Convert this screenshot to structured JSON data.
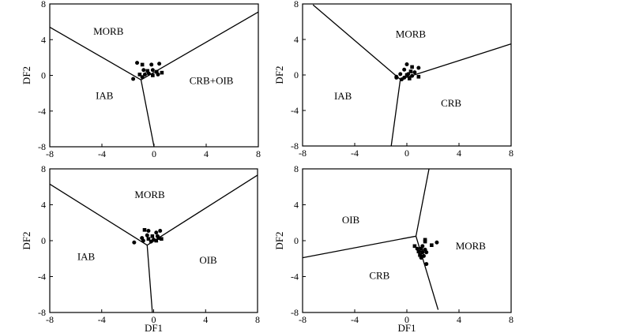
{
  "chart_data": [
    {
      "type": "scatter",
      "title": "",
      "xlabel": "",
      "ylabel": "DF2",
      "xlim": [
        -8,
        8
      ],
      "ylim": [
        -8,
        8
      ],
      "xticks": [
        "-8",
        "-4",
        "0",
        "4",
        "8"
      ],
      "yticks": [
        "8",
        "4",
        "0",
        "-4",
        "-8"
      ],
      "regions": [
        {
          "label": "MORB",
          "x": -3.5,
          "y": 4.9
        },
        {
          "label": "IAB",
          "x": -3.8,
          "y": -2.3
        },
        {
          "label": "CRB+OIB",
          "x": 4.4,
          "y": -0.6
        }
      ],
      "boundaries": [
        [
          [
            -8,
            5.4
          ],
          [
            -1.0,
            -0.5
          ]
        ],
        [
          [
            -1.0,
            -0.5
          ],
          [
            8,
            7.1
          ]
        ],
        [
          [
            -1.0,
            -0.5
          ],
          [
            0,
            -8
          ]
        ]
      ],
      "points": [
        {
          "x": -1.3,
          "y": 1.4,
          "m": "c"
        },
        {
          "x": -0.9,
          "y": 1.2,
          "m": "s"
        },
        {
          "x": -0.2,
          "y": 1.2,
          "m": "c"
        },
        {
          "x": 0.4,
          "y": 1.3,
          "m": "c"
        },
        {
          "x": -0.8,
          "y": 0.6,
          "m": "c"
        },
        {
          "x": -0.5,
          "y": 0.5,
          "m": "s"
        },
        {
          "x": -0.1,
          "y": 0.6,
          "m": "c"
        },
        {
          "x": 0.2,
          "y": 0.4,
          "m": "s"
        },
        {
          "x": -1.1,
          "y": 0.1,
          "m": "s"
        },
        {
          "x": -0.7,
          "y": 0.1,
          "m": "c"
        },
        {
          "x": -0.4,
          "y": 0.2,
          "m": "c"
        },
        {
          "x": -0.1,
          "y": 0.0,
          "m": "s"
        },
        {
          "x": 0.6,
          "y": 0.3,
          "m": "s"
        },
        {
          "x": -1.6,
          "y": -0.4,
          "m": "c"
        },
        {
          "x": -0.9,
          "y": -0.2,
          "m": "c"
        },
        {
          "x": 0.3,
          "y": 0.1,
          "m": "c"
        }
      ]
    },
    {
      "type": "scatter",
      "title": "",
      "xlabel": "",
      "ylabel": "DF2",
      "xlim": [
        -8,
        8
      ],
      "ylim": [
        -8,
        8
      ],
      "xticks": [
        "-8",
        "-4",
        "0",
        "4",
        "8"
      ],
      "yticks": [
        "8",
        "4",
        "0",
        "-4",
        "-8"
      ],
      "regions": [
        {
          "label": "MORB",
          "x": 0.3,
          "y": 4.6
        },
        {
          "label": "IAB",
          "x": -4.9,
          "y": -2.4
        },
        {
          "label": "CRB",
          "x": 3.4,
          "y": -3.2
        }
      ],
      "boundaries": [
        [
          [
            -7.2,
            7.9
          ],
          [
            -0.5,
            -0.5
          ]
        ],
        [
          [
            -0.5,
            -0.5
          ],
          [
            8,
            3.5
          ]
        ],
        [
          [
            -0.5,
            -0.5
          ],
          [
            -1.2,
            -8
          ]
        ]
      ],
      "points": [
        {
          "x": 0.0,
          "y": 1.2,
          "m": "c"
        },
        {
          "x": 0.4,
          "y": 0.9,
          "m": "s"
        },
        {
          "x": 0.9,
          "y": 0.8,
          "m": "c"
        },
        {
          "x": -0.2,
          "y": 0.6,
          "m": "c"
        },
        {
          "x": 0.3,
          "y": 0.4,
          "m": "s"
        },
        {
          "x": 0.6,
          "y": 0.3,
          "m": "c"
        },
        {
          "x": -0.5,
          "y": 0.1,
          "m": "c"
        },
        {
          "x": 0.0,
          "y": 0.0,
          "m": "s"
        },
        {
          "x": 0.4,
          "y": -0.1,
          "m": "c"
        },
        {
          "x": 0.9,
          "y": -0.2,
          "m": "s"
        },
        {
          "x": -0.2,
          "y": -0.3,
          "m": "c"
        },
        {
          "x": 0.2,
          "y": -0.4,
          "m": "s"
        },
        {
          "x": -0.8,
          "y": -0.2,
          "m": "c"
        },
        {
          "x": -0.4,
          "y": -0.5,
          "m": "c"
        },
        {
          "x": -0.8,
          "y": -0.3,
          "m": "c"
        },
        {
          "x": 0.1,
          "y": 0.1,
          "m": "c"
        }
      ]
    },
    {
      "type": "scatter",
      "title": "",
      "xlabel": "DF1",
      "ylabel": "DF2",
      "xlim": [
        -8,
        8
      ],
      "ylim": [
        -8,
        8
      ],
      "xticks": [
        "-8",
        "-4",
        "0",
        "4",
        "8"
      ],
      "yticks": [
        "8",
        "4",
        "0",
        "-4",
        "-8"
      ],
      "regions": [
        {
          "label": "MORB",
          "x": -0.3,
          "y": 5.1
        },
        {
          "label": "IAB",
          "x": -5.2,
          "y": -1.8
        },
        {
          "label": "OIB",
          "x": 4.2,
          "y": -2.2
        }
      ],
      "boundaries": [
        [
          [
            -8,
            6.3
          ],
          [
            -0.5,
            -0.5
          ]
        ],
        [
          [
            -0.5,
            -0.5
          ],
          [
            8,
            7.3
          ]
        ],
        [
          [
            -0.5,
            -0.5
          ],
          [
            -0.1,
            -8
          ]
        ]
      ],
      "points": [
        {
          "x": -0.7,
          "y": 1.2,
          "m": "s"
        },
        {
          "x": -0.4,
          "y": 1.1,
          "m": "c"
        },
        {
          "x": 0.2,
          "y": 0.9,
          "m": "c"
        },
        {
          "x": 0.5,
          "y": 1.1,
          "m": "c"
        },
        {
          "x": -0.5,
          "y": 0.6,
          "m": "c"
        },
        {
          "x": -0.1,
          "y": 0.5,
          "m": "s"
        },
        {
          "x": 0.3,
          "y": 0.5,
          "m": "c"
        },
        {
          "x": -0.9,
          "y": 0.3,
          "m": "c"
        },
        {
          "x": -0.4,
          "y": 0.2,
          "m": "s"
        },
        {
          "x": 0.0,
          "y": 0.1,
          "m": "c"
        },
        {
          "x": 0.6,
          "y": 0.2,
          "m": "s"
        },
        {
          "x": -0.8,
          "y": 0.0,
          "m": "c"
        },
        {
          "x": -0.2,
          "y": -0.1,
          "m": "c"
        },
        {
          "x": 0.2,
          "y": 0.0,
          "m": "s"
        },
        {
          "x": -1.5,
          "y": -0.2,
          "m": "c"
        },
        {
          "x": 0.4,
          "y": 0.3,
          "m": "c"
        }
      ]
    },
    {
      "type": "scatter",
      "title": "",
      "xlabel": "DF1",
      "ylabel": "DF2",
      "xlim": [
        -8,
        8
      ],
      "ylim": [
        -8,
        8
      ],
      "xticks": [
        "-8",
        "-4",
        "0",
        "4",
        "8"
      ],
      "yticks": [
        "8",
        "4",
        "0",
        "-4",
        "-8"
      ],
      "regions": [
        {
          "label": "OIB",
          "x": -4.3,
          "y": 2.3
        },
        {
          "label": "MORB",
          "x": 4.9,
          "y": -0.6
        },
        {
          "label": "CRB",
          "x": -2.1,
          "y": -3.9
        }
      ],
      "boundaries": [
        [
          [
            -8,
            -1.9
          ],
          [
            0.7,
            0.5
          ]
        ],
        [
          [
            0.7,
            0.5
          ],
          [
            1.7,
            8
          ]
        ],
        [
          [
            0.7,
            0.5
          ],
          [
            2.4,
            -7.7
          ]
        ]
      ],
      "points": [
        {
          "x": 1.4,
          "y": 0.1,
          "m": "s"
        },
        {
          "x": 1.4,
          "y": -0.1,
          "m": "s"
        },
        {
          "x": 2.3,
          "y": -0.2,
          "m": "c"
        },
        {
          "x": 0.6,
          "y": -0.6,
          "m": "s"
        },
        {
          "x": 1.2,
          "y": -0.6,
          "m": "c"
        },
        {
          "x": 1.9,
          "y": -0.5,
          "m": "s"
        },
        {
          "x": 0.8,
          "y": -0.9,
          "m": "c"
        },
        {
          "x": 1.1,
          "y": -0.9,
          "m": "s"
        },
        {
          "x": 1.4,
          "y": -1.0,
          "m": "c"
        },
        {
          "x": 0.9,
          "y": -1.2,
          "m": "s"
        },
        {
          "x": 1.2,
          "y": -1.3,
          "m": "c"
        },
        {
          "x": 1.5,
          "y": -1.3,
          "m": "c"
        },
        {
          "x": 1.0,
          "y": -1.6,
          "m": "s"
        },
        {
          "x": 1.3,
          "y": -1.7,
          "m": "c"
        },
        {
          "x": 1.1,
          "y": -1.9,
          "m": "c"
        },
        {
          "x": 1.5,
          "y": -2.6,
          "m": "c"
        }
      ]
    }
  ]
}
